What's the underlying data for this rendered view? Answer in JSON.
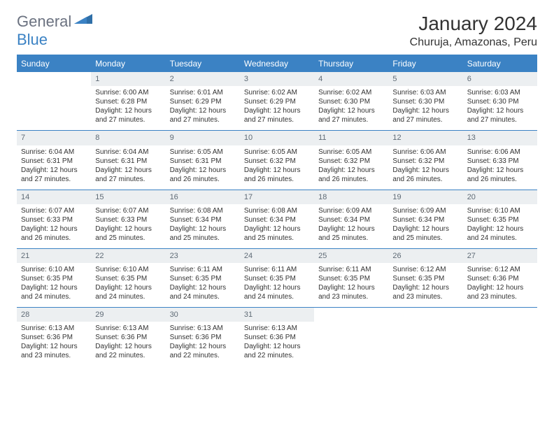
{
  "brand": {
    "part1": "General",
    "part2": "Blue"
  },
  "title": "January 2024",
  "location": "Churuja, Amazonas, Peru",
  "weekdays": [
    "Sunday",
    "Monday",
    "Tuesday",
    "Wednesday",
    "Thursday",
    "Friday",
    "Saturday"
  ],
  "colors": {
    "header_bg": "#3b82c4",
    "header_text": "#ffffff",
    "daynum_bg": "#eceff1",
    "daynum_text": "#5f6b76",
    "body_text": "#333333",
    "rule": "#3b82c4"
  },
  "layout": {
    "first_weekday_index": 1,
    "rows": 5,
    "cols": 7
  },
  "days": [
    {
      "n": "1",
      "sunrise": "Sunrise: 6:00 AM",
      "sunset": "Sunset: 6:28 PM",
      "day1": "Daylight: 12 hours",
      "day2": "and 27 minutes."
    },
    {
      "n": "2",
      "sunrise": "Sunrise: 6:01 AM",
      "sunset": "Sunset: 6:29 PM",
      "day1": "Daylight: 12 hours",
      "day2": "and 27 minutes."
    },
    {
      "n": "3",
      "sunrise": "Sunrise: 6:02 AM",
      "sunset": "Sunset: 6:29 PM",
      "day1": "Daylight: 12 hours",
      "day2": "and 27 minutes."
    },
    {
      "n": "4",
      "sunrise": "Sunrise: 6:02 AM",
      "sunset": "Sunset: 6:30 PM",
      "day1": "Daylight: 12 hours",
      "day2": "and 27 minutes."
    },
    {
      "n": "5",
      "sunrise": "Sunrise: 6:03 AM",
      "sunset": "Sunset: 6:30 PM",
      "day1": "Daylight: 12 hours",
      "day2": "and 27 minutes."
    },
    {
      "n": "6",
      "sunrise": "Sunrise: 6:03 AM",
      "sunset": "Sunset: 6:30 PM",
      "day1": "Daylight: 12 hours",
      "day2": "and 27 minutes."
    },
    {
      "n": "7",
      "sunrise": "Sunrise: 6:04 AM",
      "sunset": "Sunset: 6:31 PM",
      "day1": "Daylight: 12 hours",
      "day2": "and 27 minutes."
    },
    {
      "n": "8",
      "sunrise": "Sunrise: 6:04 AM",
      "sunset": "Sunset: 6:31 PM",
      "day1": "Daylight: 12 hours",
      "day2": "and 27 minutes."
    },
    {
      "n": "9",
      "sunrise": "Sunrise: 6:05 AM",
      "sunset": "Sunset: 6:31 PM",
      "day1": "Daylight: 12 hours",
      "day2": "and 26 minutes."
    },
    {
      "n": "10",
      "sunrise": "Sunrise: 6:05 AM",
      "sunset": "Sunset: 6:32 PM",
      "day1": "Daylight: 12 hours",
      "day2": "and 26 minutes."
    },
    {
      "n": "11",
      "sunrise": "Sunrise: 6:05 AM",
      "sunset": "Sunset: 6:32 PM",
      "day1": "Daylight: 12 hours",
      "day2": "and 26 minutes."
    },
    {
      "n": "12",
      "sunrise": "Sunrise: 6:06 AM",
      "sunset": "Sunset: 6:32 PM",
      "day1": "Daylight: 12 hours",
      "day2": "and 26 minutes."
    },
    {
      "n": "13",
      "sunrise": "Sunrise: 6:06 AM",
      "sunset": "Sunset: 6:33 PM",
      "day1": "Daylight: 12 hours",
      "day2": "and 26 minutes."
    },
    {
      "n": "14",
      "sunrise": "Sunrise: 6:07 AM",
      "sunset": "Sunset: 6:33 PM",
      "day1": "Daylight: 12 hours",
      "day2": "and 26 minutes."
    },
    {
      "n": "15",
      "sunrise": "Sunrise: 6:07 AM",
      "sunset": "Sunset: 6:33 PM",
      "day1": "Daylight: 12 hours",
      "day2": "and 25 minutes."
    },
    {
      "n": "16",
      "sunrise": "Sunrise: 6:08 AM",
      "sunset": "Sunset: 6:34 PM",
      "day1": "Daylight: 12 hours",
      "day2": "and 25 minutes."
    },
    {
      "n": "17",
      "sunrise": "Sunrise: 6:08 AM",
      "sunset": "Sunset: 6:34 PM",
      "day1": "Daylight: 12 hours",
      "day2": "and 25 minutes."
    },
    {
      "n": "18",
      "sunrise": "Sunrise: 6:09 AM",
      "sunset": "Sunset: 6:34 PM",
      "day1": "Daylight: 12 hours",
      "day2": "and 25 minutes."
    },
    {
      "n": "19",
      "sunrise": "Sunrise: 6:09 AM",
      "sunset": "Sunset: 6:34 PM",
      "day1": "Daylight: 12 hours",
      "day2": "and 25 minutes."
    },
    {
      "n": "20",
      "sunrise": "Sunrise: 6:10 AM",
      "sunset": "Sunset: 6:35 PM",
      "day1": "Daylight: 12 hours",
      "day2": "and 24 minutes."
    },
    {
      "n": "21",
      "sunrise": "Sunrise: 6:10 AM",
      "sunset": "Sunset: 6:35 PM",
      "day1": "Daylight: 12 hours",
      "day2": "and 24 minutes."
    },
    {
      "n": "22",
      "sunrise": "Sunrise: 6:10 AM",
      "sunset": "Sunset: 6:35 PM",
      "day1": "Daylight: 12 hours",
      "day2": "and 24 minutes."
    },
    {
      "n": "23",
      "sunrise": "Sunrise: 6:11 AM",
      "sunset": "Sunset: 6:35 PM",
      "day1": "Daylight: 12 hours",
      "day2": "and 24 minutes."
    },
    {
      "n": "24",
      "sunrise": "Sunrise: 6:11 AM",
      "sunset": "Sunset: 6:35 PM",
      "day1": "Daylight: 12 hours",
      "day2": "and 24 minutes."
    },
    {
      "n": "25",
      "sunrise": "Sunrise: 6:11 AM",
      "sunset": "Sunset: 6:35 PM",
      "day1": "Daylight: 12 hours",
      "day2": "and 23 minutes."
    },
    {
      "n": "26",
      "sunrise": "Sunrise: 6:12 AM",
      "sunset": "Sunset: 6:35 PM",
      "day1": "Daylight: 12 hours",
      "day2": "and 23 minutes."
    },
    {
      "n": "27",
      "sunrise": "Sunrise: 6:12 AM",
      "sunset": "Sunset: 6:36 PM",
      "day1": "Daylight: 12 hours",
      "day2": "and 23 minutes."
    },
    {
      "n": "28",
      "sunrise": "Sunrise: 6:13 AM",
      "sunset": "Sunset: 6:36 PM",
      "day1": "Daylight: 12 hours",
      "day2": "and 23 minutes."
    },
    {
      "n": "29",
      "sunrise": "Sunrise: 6:13 AM",
      "sunset": "Sunset: 6:36 PM",
      "day1": "Daylight: 12 hours",
      "day2": "and 22 minutes."
    },
    {
      "n": "30",
      "sunrise": "Sunrise: 6:13 AM",
      "sunset": "Sunset: 6:36 PM",
      "day1": "Daylight: 12 hours",
      "day2": "and 22 minutes."
    },
    {
      "n": "31",
      "sunrise": "Sunrise: 6:13 AM",
      "sunset": "Sunset: 6:36 PM",
      "day1": "Daylight: 12 hours",
      "day2": "and 22 minutes."
    }
  ]
}
